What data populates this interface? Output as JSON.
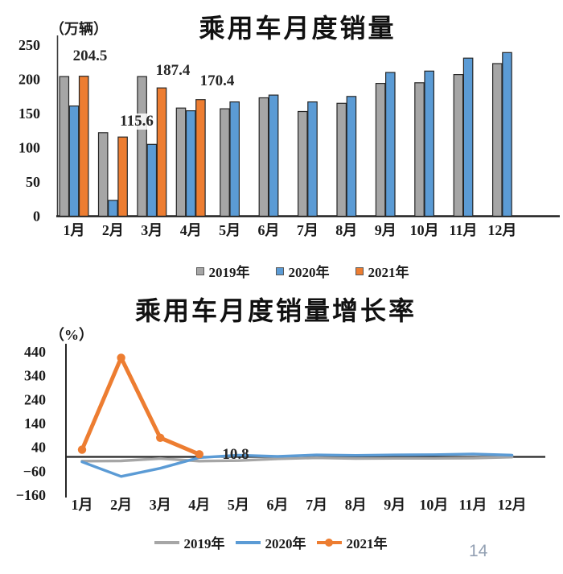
{
  "page": {
    "number": "14"
  },
  "colors": {
    "series_2019": "#a6a6a6",
    "series_2020": "#5b9bd5",
    "series_2021": "#ed7d31",
    "axis": "#262626",
    "page_number": "#93a0b3"
  },
  "chart_data": [
    {
      "type": "bar",
      "title": "乘用车月度销量",
      "unit_label": "（万辆）",
      "ylim": [
        0,
        250
      ],
      "yticks": [
        250,
        200,
        150,
        100,
        50,
        0
      ],
      "grid": false,
      "legend_position": "bottom",
      "categories": [
        "1月",
        "2月",
        "3月",
        "4月",
        "5月",
        "6月",
        "7月",
        "8月",
        "9月",
        "10月",
        "11月",
        "12月"
      ],
      "series": [
        {
          "name": "2019年",
          "color": "#a6a6a6",
          "values": [
            204,
            122,
            204,
            158,
            157,
            173,
            153,
            165,
            194,
            195,
            207,
            223
          ]
        },
        {
          "name": "2020年",
          "color": "#5b9bd5",
          "values": [
            161,
            23,
            105,
            154,
            167,
            177,
            167,
            175,
            210,
            212,
            231,
            239
          ]
        },
        {
          "name": "2021年",
          "color": "#ed7d31",
          "values": [
            204.5,
            115.6,
            187.4,
            170.4
          ]
        }
      ],
      "value_labels": [
        "204.5",
        "115.6",
        "187.4",
        "170.4"
      ]
    },
    {
      "type": "line",
      "title": "乘用车月度销量增长率",
      "unit_label": "（%）",
      "ylim": [
        -160,
        440
      ],
      "yticks": [
        440,
        340,
        240,
        140,
        40,
        -60,
        -160
      ],
      "grid": false,
      "legend_position": "bottom",
      "categories": [
        "1月",
        "2月",
        "3月",
        "4月",
        "5月",
        "6月",
        "7月",
        "8月",
        "9月",
        "10月",
        "11月",
        "12月"
      ],
      "series": [
        {
          "name": "2019年",
          "color": "#a6a6a6",
          "values": [
            -18,
            -17,
            -7,
            -18,
            -16,
            -8,
            -4,
            -7,
            -6,
            -6,
            -5,
            -1
          ]
        },
        {
          "name": "2020年",
          "color": "#5b9bd5",
          "values": [
            -21,
            -82,
            -48,
            -3,
            7,
            2,
            8,
            6,
            8,
            9,
            12,
            7
          ]
        },
        {
          "name": "2021年",
          "color": "#ed7d31",
          "markers": true,
          "values": [
            30,
            415,
            80,
            10.8
          ]
        }
      ],
      "value_labels": [
        "10.8"
      ]
    }
  ]
}
